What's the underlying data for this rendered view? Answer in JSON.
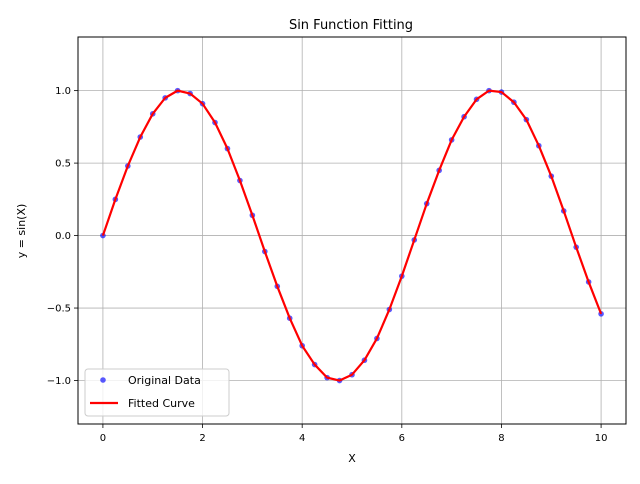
{
  "chart_data": {
    "type": "scatter",
    "title": "Sin Function Fitting",
    "xlabel": "X",
    "ylabel": "y = sin(X)",
    "xlim": [
      -0.5,
      10.5
    ],
    "ylim": [
      -1.3,
      1.37
    ],
    "xticks": [
      0,
      2,
      4,
      6,
      8,
      10
    ],
    "xtick_labels": [
      "0",
      "2",
      "4",
      "6",
      "8",
      "10"
    ],
    "yticks": [
      -1.0,
      -0.5,
      0.0,
      0.5,
      1.0
    ],
    "ytick_labels": [
      "−1.0",
      "−0.5",
      "0.0",
      "0.5",
      "1.0"
    ],
    "grid": true,
    "legend_position": "lower-left",
    "series": [
      {
        "name": "Original Data",
        "kind": "scatter",
        "color": "#0000ff",
        "x": [
          0.0,
          0.25,
          0.5,
          0.75,
          1.0,
          1.25,
          1.5,
          1.75,
          2.0,
          2.25,
          2.5,
          2.75,
          3.0,
          3.25,
          3.5,
          3.75,
          4.0,
          4.25,
          4.5,
          4.75,
          5.0,
          5.25,
          5.5,
          5.75,
          6.0,
          6.25,
          6.5,
          6.75,
          7.0,
          7.25,
          7.5,
          7.75,
          8.0,
          8.25,
          8.5,
          8.75,
          9.0,
          9.25,
          9.5,
          9.75,
          10.0
        ],
        "y": [
          0.0,
          0.25,
          0.48,
          0.68,
          0.84,
          0.95,
          1.0,
          0.98,
          0.91,
          0.78,
          0.6,
          0.38,
          0.14,
          -0.11,
          -0.35,
          -0.57,
          -0.76,
          -0.89,
          -0.98,
          -1.0,
          -0.96,
          -0.86,
          -0.71,
          -0.51,
          -0.28,
          -0.03,
          0.22,
          0.45,
          0.66,
          0.82,
          0.94,
          1.0,
          0.99,
          0.92,
          0.8,
          0.62,
          0.41,
          0.17,
          -0.08,
          -0.32,
          -0.54
        ]
      },
      {
        "name": "Fitted Curve",
        "kind": "line",
        "color": "#ff0000",
        "x": [
          0.0,
          0.25,
          0.5,
          0.75,
          1.0,
          1.25,
          1.5,
          1.75,
          2.0,
          2.25,
          2.5,
          2.75,
          3.0,
          3.25,
          3.5,
          3.75,
          4.0,
          4.25,
          4.5,
          4.75,
          5.0,
          5.25,
          5.5,
          5.75,
          6.0,
          6.25,
          6.5,
          6.75,
          7.0,
          7.25,
          7.5,
          7.75,
          8.0,
          8.25,
          8.5,
          8.75,
          9.0,
          9.25,
          9.5,
          9.75,
          10.0
        ],
        "y": [
          0.0,
          0.25,
          0.48,
          0.68,
          0.84,
          0.95,
          1.0,
          0.98,
          0.91,
          0.78,
          0.6,
          0.38,
          0.14,
          -0.11,
          -0.35,
          -0.57,
          -0.76,
          -0.89,
          -0.98,
          -1.0,
          -0.96,
          -0.86,
          -0.71,
          -0.51,
          -0.28,
          -0.03,
          0.22,
          0.45,
          0.66,
          0.82,
          0.94,
          1.0,
          0.99,
          0.92,
          0.8,
          0.62,
          0.41,
          0.17,
          -0.08,
          -0.32,
          -0.54
        ]
      }
    ]
  }
}
